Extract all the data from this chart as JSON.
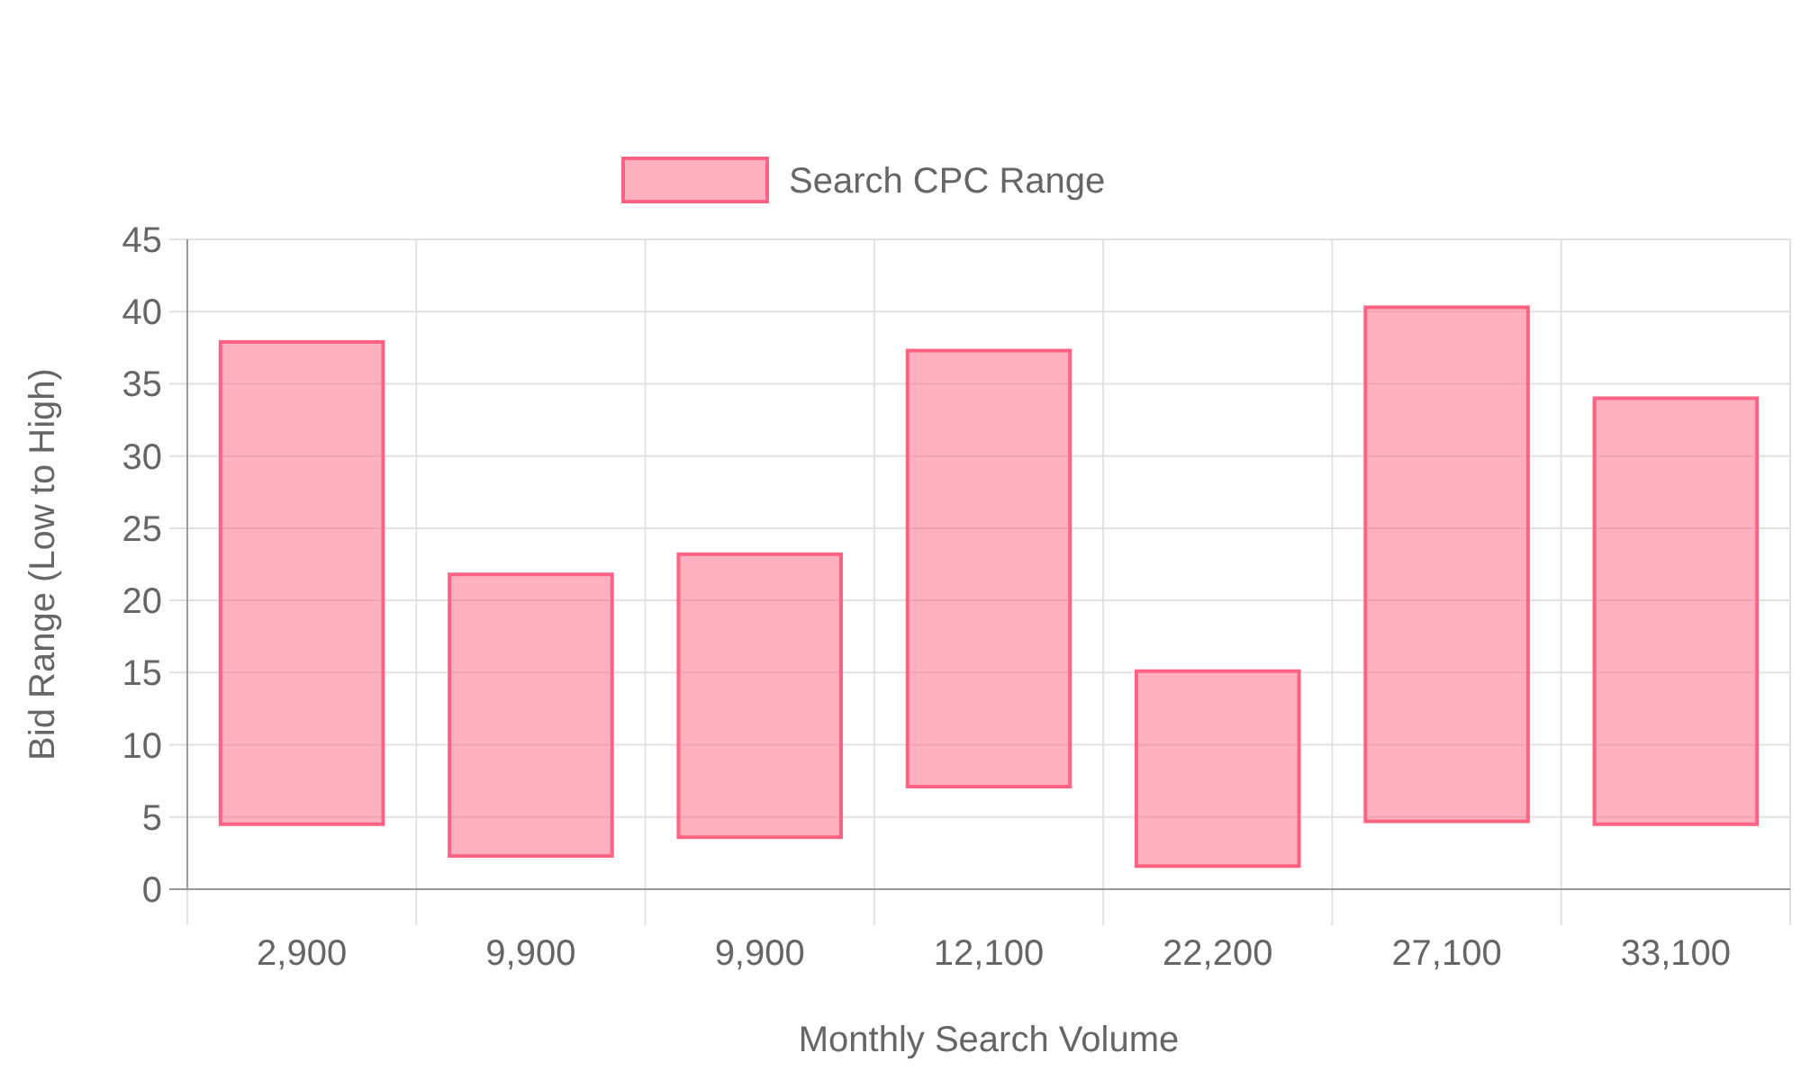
{
  "chart_data": {
    "type": "bar",
    "xlabel": "Monthly Search Volume",
    "ylabel": "Bid Range (Low to High)",
    "categories": [
      "2,900",
      "9,900",
      "9,900",
      "12,100",
      "22,200",
      "27,100",
      "33,100"
    ],
    "series": [
      {
        "name": "Search CPC Range",
        "color": "#ff6384",
        "values": [
          33.4,
          19.5,
          19.6,
          30.2,
          13.5,
          35.6,
          29.5
        ],
        "base": [
          4.5,
          2.3,
          3.6,
          7.1,
          1.6,
          4.7,
          4.5
        ]
      }
    ],
    "ylim": [
      0,
      45
    ],
    "yticks": [
      0,
      5,
      10,
      15,
      20,
      25,
      30,
      35,
      40,
      45
    ],
    "grid": true,
    "legend": "top"
  }
}
